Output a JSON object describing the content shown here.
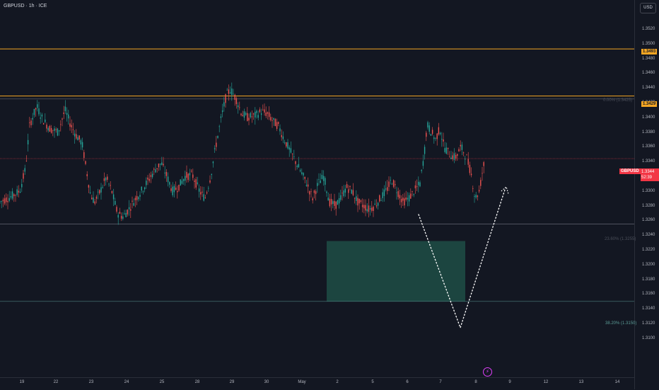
{
  "header": {
    "symbol": "GBPUSD · 1h · ICE"
  },
  "currency": {
    "label": "USD"
  },
  "price_axis": {
    "ticks": [
      "1.3520",
      "1.3500",
      "1.3480",
      "1.3460",
      "1.3440",
      "1.3420",
      "1.3400",
      "1.3380",
      "1.3360",
      "1.3340",
      "1.3320",
      "1.3300",
      "1.3280",
      "1.3260",
      "1.3240",
      "1.3220",
      "1.3200",
      "1.3180",
      "1.3160",
      "1.3140",
      "1.3120",
      "1.3100"
    ],
    "levels": [
      {
        "label": "1.3493",
        "value": 1.3493,
        "color": "#f5a623"
      },
      {
        "label": "1.3429",
        "value": 1.3429,
        "color": "#f5a623"
      }
    ],
    "current": {
      "symbol": "GBPUSD",
      "price": "1.3344",
      "countdown": "52:39",
      "value": 1.3344
    }
  },
  "time_axis": {
    "labels": [
      "19",
      "22",
      "23",
      "24",
      "25",
      "28",
      "29",
      "30",
      "May",
      "2",
      "5",
      "6",
      "7",
      "8",
      "9",
      "12",
      "13",
      "14"
    ]
  },
  "fib_levels": [
    {
      "label": "0.00% (1.3425)",
      "value": 1.3425,
      "color": "#787b86"
    },
    {
      "label": "23.60% (1.3255)",
      "value": 1.3255,
      "color": "#787b86"
    },
    {
      "label": "38.20% (1.3150)",
      "value": 1.315,
      "color": "#5b9c96"
    }
  ],
  "zone": {
    "low": 1.315,
    "high": 1.3232,
    "color": "#1e4d45"
  },
  "projection": {
    "color": "#ffffff"
  },
  "colors": {
    "up": "#26a69a",
    "down": "#ef5350",
    "background": "#131722"
  }
}
